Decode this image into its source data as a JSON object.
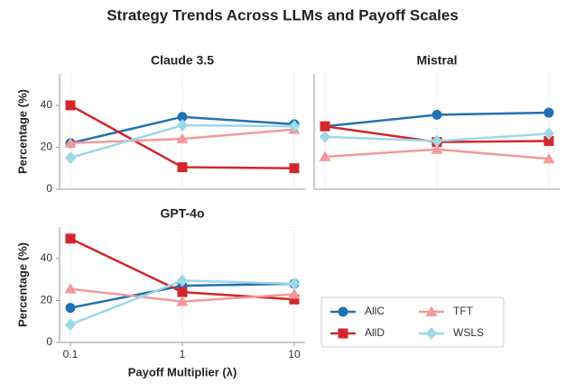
{
  "title": "Strategy Trends Across LLMs and Payoff Scales",
  "legend": {
    "series": [
      {
        "name": "AllC",
        "color": "#2271b2",
        "marker": "circle"
      },
      {
        "name": "AllD",
        "color": "#d2262c",
        "marker": "square"
      },
      {
        "name": "TFT",
        "color": "#f4999a",
        "marker": "triangle"
      },
      {
        "name": "WSLS",
        "color": "#9dd8e8",
        "marker": "diamond"
      }
    ]
  },
  "chart_data": [
    {
      "type": "line",
      "title": "Claude 3.5",
      "ylabel": "Percentage (%)",
      "xscale": "log",
      "x": [
        0.1,
        1,
        10
      ],
      "xlim": [
        0.08,
        12.5
      ],
      "xticks": [
        0.1,
        1,
        10
      ],
      "ylim": [
        0,
        55
      ],
      "yticks": [
        0,
        20,
        40
      ],
      "series": [
        {
          "values": [
            22,
            34.5,
            31
          ]
        },
        {
          "values": [
            40,
            10.5,
            10
          ]
        },
        {
          "values": [
            22,
            24,
            28.5
          ]
        },
        {
          "values": [
            15,
            30.5,
            30
          ]
        }
      ]
    },
    {
      "type": "line",
      "title": "Mistral",
      "xscale": "log",
      "x": [
        0.1,
        1,
        10
      ],
      "xlim": [
        0.08,
        12.5
      ],
      "xticks": [
        0.1,
        1,
        10
      ],
      "ylim": [
        0,
        55
      ],
      "series": [
        {
          "values": [
            30,
            35.5,
            36.5
          ]
        },
        {
          "values": [
            30,
            22.5,
            23
          ]
        },
        {
          "values": [
            15.5,
            19,
            14.5
          ]
        },
        {
          "values": [
            25,
            23,
            26.5
          ]
        }
      ]
    },
    {
      "type": "line",
      "title": "GPT-4o",
      "ylabel": "Percentage (%)",
      "xlabel": "Payoff Multiplier (λ)",
      "xscale": "log",
      "x": [
        0.1,
        1,
        10
      ],
      "xlim": [
        0.08,
        12.5
      ],
      "xticks": [
        0.1,
        1,
        10
      ],
      "ylim": [
        0,
        55
      ],
      "yticks": [
        0,
        20,
        40
      ],
      "series": [
        {
          "values": [
            16.5,
            27,
            28
          ]
        },
        {
          "values": [
            49.5,
            24,
            20.5
          ]
        },
        {
          "values": [
            25.5,
            19.5,
            23
          ]
        },
        {
          "values": [
            8.5,
            29.5,
            28
          ]
        }
      ]
    }
  ]
}
